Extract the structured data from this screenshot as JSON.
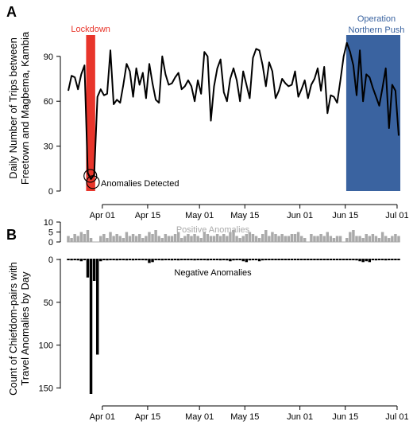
{
  "chart_data": [
    {
      "panel": "A",
      "type": "line",
      "ylabel_lines": [
        "Daily Number of Trips between",
        "Freetown and Magbema, Kambia"
      ],
      "x_ticks": [
        "Apr 01",
        "Apr 15",
        "May 01",
        "May 15",
        "Jun 01",
        "Jun 15",
        "Jul 01"
      ],
      "ylim": [
        0,
        100
      ],
      "y_ticks": [
        0,
        30,
        60,
        90
      ],
      "start_date": "Mar 21",
      "series": [
        {
          "values": [
            67,
            77,
            76,
            68,
            78,
            84,
            12,
            8,
            11,
            63,
            68,
            64,
            65,
            94,
            58,
            61,
            59,
            71,
            85,
            80,
            63,
            82,
            71,
            79,
            62,
            85,
            72,
            61,
            59,
            90,
            78,
            71,
            72,
            76,
            79,
            68,
            70,
            74,
            70,
            60,
            74,
            65,
            93,
            90,
            47,
            70,
            82,
            88,
            66,
            60,
            75,
            82,
            74,
            60,
            80,
            71,
            62,
            89,
            95,
            94,
            84,
            70,
            86,
            80,
            62,
            67,
            75,
            72,
            70,
            71,
            80,
            63,
            68,
            74,
            62,
            71,
            75,
            82,
            67,
            83,
            52,
            64,
            63,
            59,
            74,
            90,
            99,
            93,
            84,
            64,
            94,
            60,
            78,
            76,
            69,
            63,
            57,
            69,
            82,
            42,
            71,
            67,
            37
          ]
        }
      ],
      "highlights": [
        {
          "label": "Lockdown",
          "color": "#e8352b",
          "from_day": 5.5,
          "to_day": 8.3
        },
        {
          "label_lines": [
            "Operation",
            "Northern Push"
          ],
          "color": "#3a63a0",
          "from_day": 85.8,
          "to_day": 102.5
        }
      ],
      "annotation": "Anomalies Detected"
    },
    {
      "panel": "B",
      "type": "bar",
      "ylabel_lines": [
        "Count of Chiefdom-pairs with",
        "Travel Anomalies by Day"
      ],
      "x_ticks": [
        "Apr 01",
        "Apr 15",
        "May 01",
        "May 15",
        "Jun 01",
        "Jun 15",
        "Jul 01"
      ],
      "positive_label": "Positive Anomalies",
      "negative_label": "Negative Anomalies",
      "positive_y_ticks": [
        0,
        5,
        10
      ],
      "negative_y_ticks": [
        0,
        50,
        100,
        150
      ],
      "series": [
        {
          "name": "Positive Anomalies",
          "color": "#aaaaaa",
          "values": [
            3,
            2,
            4,
            3,
            5,
            4,
            6,
            2,
            0,
            0,
            3,
            4,
            2,
            5,
            3,
            4,
            3,
            2,
            5,
            3,
            4,
            3,
            4,
            2,
            3,
            5,
            4,
            6,
            3,
            2,
            4,
            3,
            3,
            4,
            5,
            2,
            3,
            4,
            3,
            4,
            3,
            2,
            5,
            4,
            3,
            3,
            4,
            3,
            4,
            3,
            5,
            6,
            3,
            2,
            3,
            4,
            5,
            4,
            3,
            2,
            4,
            6,
            3,
            5,
            4,
            3,
            4,
            3,
            3,
            4,
            4,
            5,
            3,
            2,
            0,
            4,
            3,
            3,
            4,
            3,
            5,
            3,
            2,
            3,
            3,
            0,
            2,
            5,
            6,
            3,
            3,
            2,
            4,
            3,
            4,
            3,
            2,
            5,
            3,
            2,
            3,
            4,
            3
          ]
        },
        {
          "name": "Negative Anomalies",
          "color": "#000000",
          "values": [
            0,
            2,
            1,
            2,
            3,
            1,
            22,
            158,
            26,
            112,
            3,
            0,
            2,
            0,
            1,
            2,
            0,
            0,
            2,
            0,
            2,
            0,
            1,
            1,
            2,
            5,
            4,
            1,
            0,
            2,
            0,
            1,
            2,
            0,
            2,
            0,
            1,
            0,
            0,
            2,
            1,
            0,
            0,
            2,
            1,
            1,
            0,
            2,
            1,
            2,
            3,
            2,
            0,
            1,
            3,
            4,
            2,
            0,
            1,
            3,
            2,
            0,
            1,
            0,
            0,
            0,
            0,
            0,
            0,
            0,
            0,
            1,
            1,
            1,
            1,
            0,
            0,
            0,
            0,
            1,
            0,
            0,
            0,
            0,
            0,
            0,
            0,
            0,
            0,
            2,
            3,
            4,
            3,
            4,
            1,
            2,
            0,
            1,
            2,
            1,
            0,
            0,
            0
          ]
        }
      ]
    }
  ]
}
